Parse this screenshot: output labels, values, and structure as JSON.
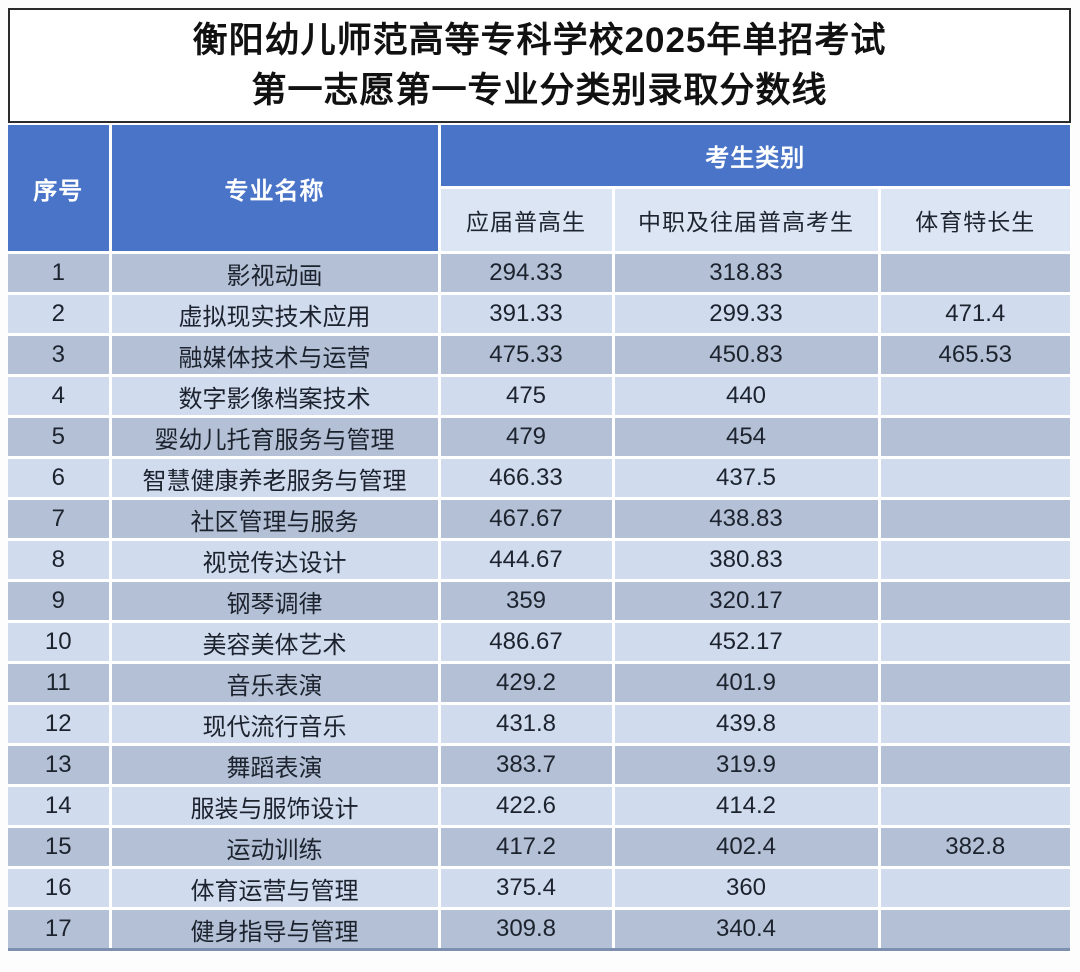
{
  "title": {
    "line1": "衡阳幼儿师范高等专科学校2025年单招考试",
    "line2": "第一志愿第一专业分类别录取分数线"
  },
  "table": {
    "headers": {
      "index": "序号",
      "major": "专业名称",
      "category_group": "考生类别",
      "categories": [
        "应届普高生",
        "中职及往届普高考生",
        "体育特长生"
      ]
    },
    "rows": [
      {
        "no": "1",
        "major": "影视动画",
        "scores": [
          "294.33",
          "318.83",
          ""
        ]
      },
      {
        "no": "2",
        "major": "虚拟现实技术应用",
        "scores": [
          "391.33",
          "299.33",
          "471.4"
        ]
      },
      {
        "no": "3",
        "major": "融媒体技术与运营",
        "scores": [
          "475.33",
          "450.83",
          "465.53"
        ]
      },
      {
        "no": "4",
        "major": "数字影像档案技术",
        "scores": [
          "475",
          "440",
          ""
        ]
      },
      {
        "no": "5",
        "major": "婴幼儿托育服务与管理",
        "scores": [
          "479",
          "454",
          ""
        ]
      },
      {
        "no": "6",
        "major": "智慧健康养老服务与管理",
        "scores": [
          "466.33",
          "437.5",
          ""
        ]
      },
      {
        "no": "7",
        "major": "社区管理与服务",
        "scores": [
          "467.67",
          "438.83",
          ""
        ]
      },
      {
        "no": "8",
        "major": "视觉传达设计",
        "scores": [
          "444.67",
          "380.83",
          ""
        ]
      },
      {
        "no": "9",
        "major": "钢琴调律",
        "scores": [
          "359",
          "320.17",
          ""
        ]
      },
      {
        "no": "10",
        "major": "美容美体艺术",
        "scores": [
          "486.67",
          "452.17",
          ""
        ]
      },
      {
        "no": "11",
        "major": "音乐表演",
        "scores": [
          "429.2",
          "401.9",
          ""
        ]
      },
      {
        "no": "12",
        "major": "现代流行音乐",
        "scores": [
          "431.8",
          "439.8",
          ""
        ]
      },
      {
        "no": "13",
        "major": "舞蹈表演",
        "scores": [
          "383.7",
          "319.9",
          ""
        ]
      },
      {
        "no": "14",
        "major": "服装与服饰设计",
        "scores": [
          "422.6",
          "414.2",
          ""
        ]
      },
      {
        "no": "15",
        "major": "运动训练",
        "scores": [
          "417.2",
          "402.4",
          "382.8"
        ]
      },
      {
        "no": "16",
        "major": "体育运营与管理",
        "scores": [
          "375.4",
          "360",
          ""
        ]
      },
      {
        "no": "17",
        "major": "健身指导与管理",
        "scores": [
          "309.8",
          "340.4",
          ""
        ]
      }
    ]
  },
  "colors": {
    "header_blue": "#4a74c8",
    "subheader_bg": "#dbe5f4",
    "row_odd_bg": "#b4c0d5",
    "row_even_bg": "#d0dbee",
    "grid_line": "#ffffff",
    "table_bottom_border": "#7e90af",
    "title_border": "#2b2b2b"
  }
}
